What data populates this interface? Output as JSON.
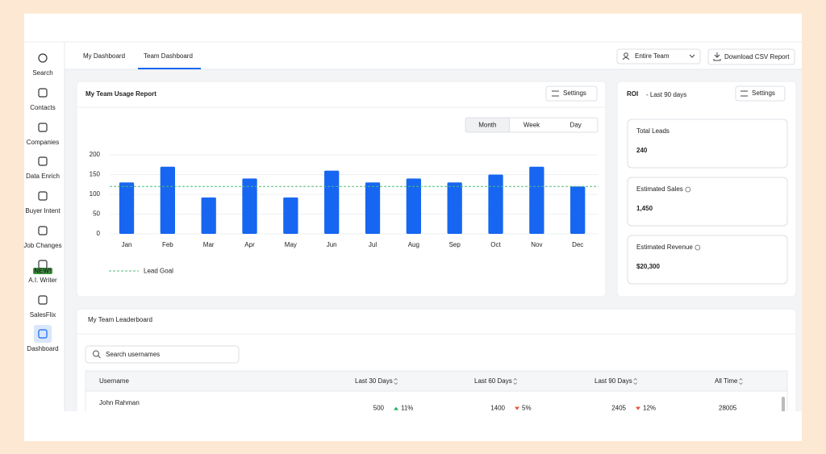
{
  "sidebar": [
    {
      "label": "Search"
    },
    {
      "label": "Contacts"
    },
    {
      "label": "Companies"
    },
    {
      "label": "Data Enrich"
    },
    {
      "label": "Buyer Intent"
    },
    {
      "label": "Job Changes"
    },
    {
      "label": "A.I. Writer",
      "badge": "NEW!"
    },
    {
      "label": "SalesFlix"
    },
    {
      "label": "Dashboard"
    }
  ],
  "active_item": 8,
  "tabs": [
    "My Dashboard",
    "Team Dashboard"
  ],
  "active_tab": 1,
  "team_select": "Entire Team",
  "download_button": "Download CSV Report",
  "usage_report": {
    "title": "My Team Usage Report",
    "settings": "Settings",
    "periods": [
      "Month",
      "Week",
      "Day"
    ],
    "active_period": 0
  },
  "chart_data": {
    "type": "bar",
    "categories": [
      "Jan",
      "Feb",
      "Mar",
      "Apr",
      "May",
      "Jun",
      "Jul",
      "Aug",
      "Sep",
      "Oct",
      "Nov",
      "Dec"
    ],
    "values": [
      130,
      170,
      92,
      140,
      92,
      160,
      130,
      140,
      130,
      150,
      170,
      120
    ],
    "color": "#1766f2",
    "ylim": [
      0,
      200
    ],
    "yticks": [
      0,
      50,
      100,
      150,
      200
    ],
    "grid": true,
    "goal": {
      "name": "Lead Goal",
      "value": 120,
      "color": "#4cbb7a"
    }
  },
  "roi": {
    "title": "ROI",
    "subtitle": "- Last 90 days",
    "settings": "Settings",
    "cards": [
      {
        "label": "Total Leads",
        "value": "240"
      },
      {
        "label": "Estimated Sales",
        "value": "1,450",
        "info": true
      },
      {
        "label": "Estimated Revenue",
        "value": "$20,300",
        "info": true
      }
    ]
  },
  "leaderboard": {
    "title": "My Team Leaderboard",
    "search_placeholder": "Search usernames",
    "columns": [
      "Username",
      "Last 30 Days",
      "Last 60 Days",
      "Last 90 Days",
      "All Time"
    ],
    "rows": [
      {
        "name": "John Rahman",
        "periods": [
          {
            "value": 500,
            "change": "11%",
            "trend": "up"
          },
          {
            "value": 1400,
            "change": "5%",
            "trend": "down"
          },
          {
            "value": 2405,
            "change": "12%",
            "trend": "down"
          }
        ],
        "all_time": 28005
      }
    ]
  }
}
